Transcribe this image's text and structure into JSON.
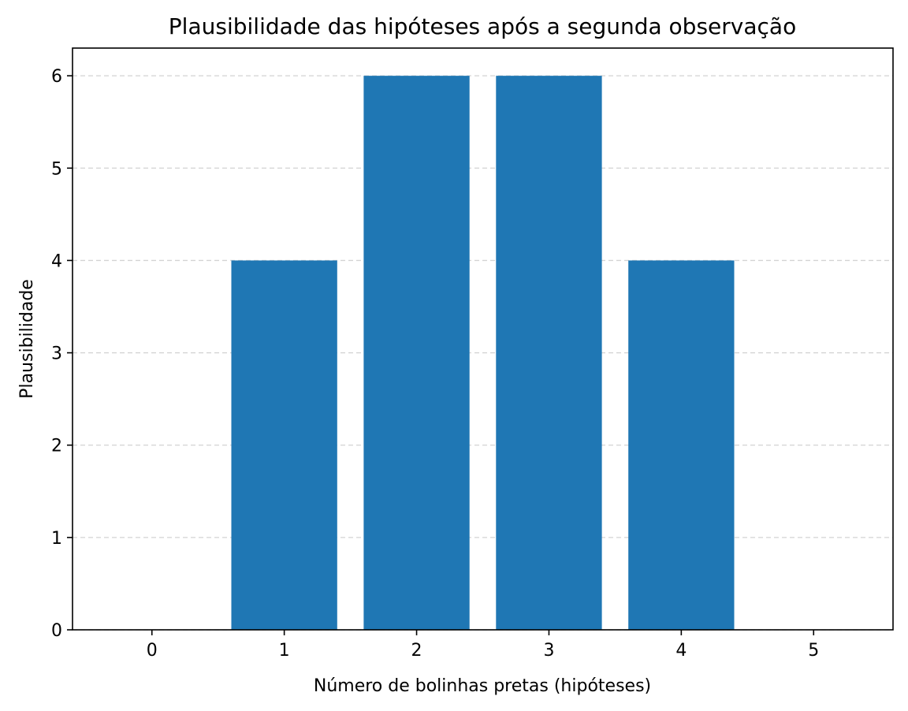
{
  "chart_data": {
    "type": "bar",
    "title": "Plausibilidade das hipóteses após a segunda observação",
    "xlabel": "Número de bolinhas pretas (hipóteses)",
    "ylabel": "Plausibilidade",
    "categories": [
      "0",
      "1",
      "2",
      "3",
      "4",
      "5"
    ],
    "values": [
      0,
      4,
      6,
      6,
      4,
      0
    ],
    "yticks": [
      "0",
      "1",
      "2",
      "3",
      "4",
      "5",
      "6"
    ],
    "ylim": [
      0,
      6.3
    ],
    "grid": "y, dashed",
    "colors": {
      "bar": "#1f77b4",
      "grid": "#d3d3d3",
      "axis": "#000000"
    }
  }
}
